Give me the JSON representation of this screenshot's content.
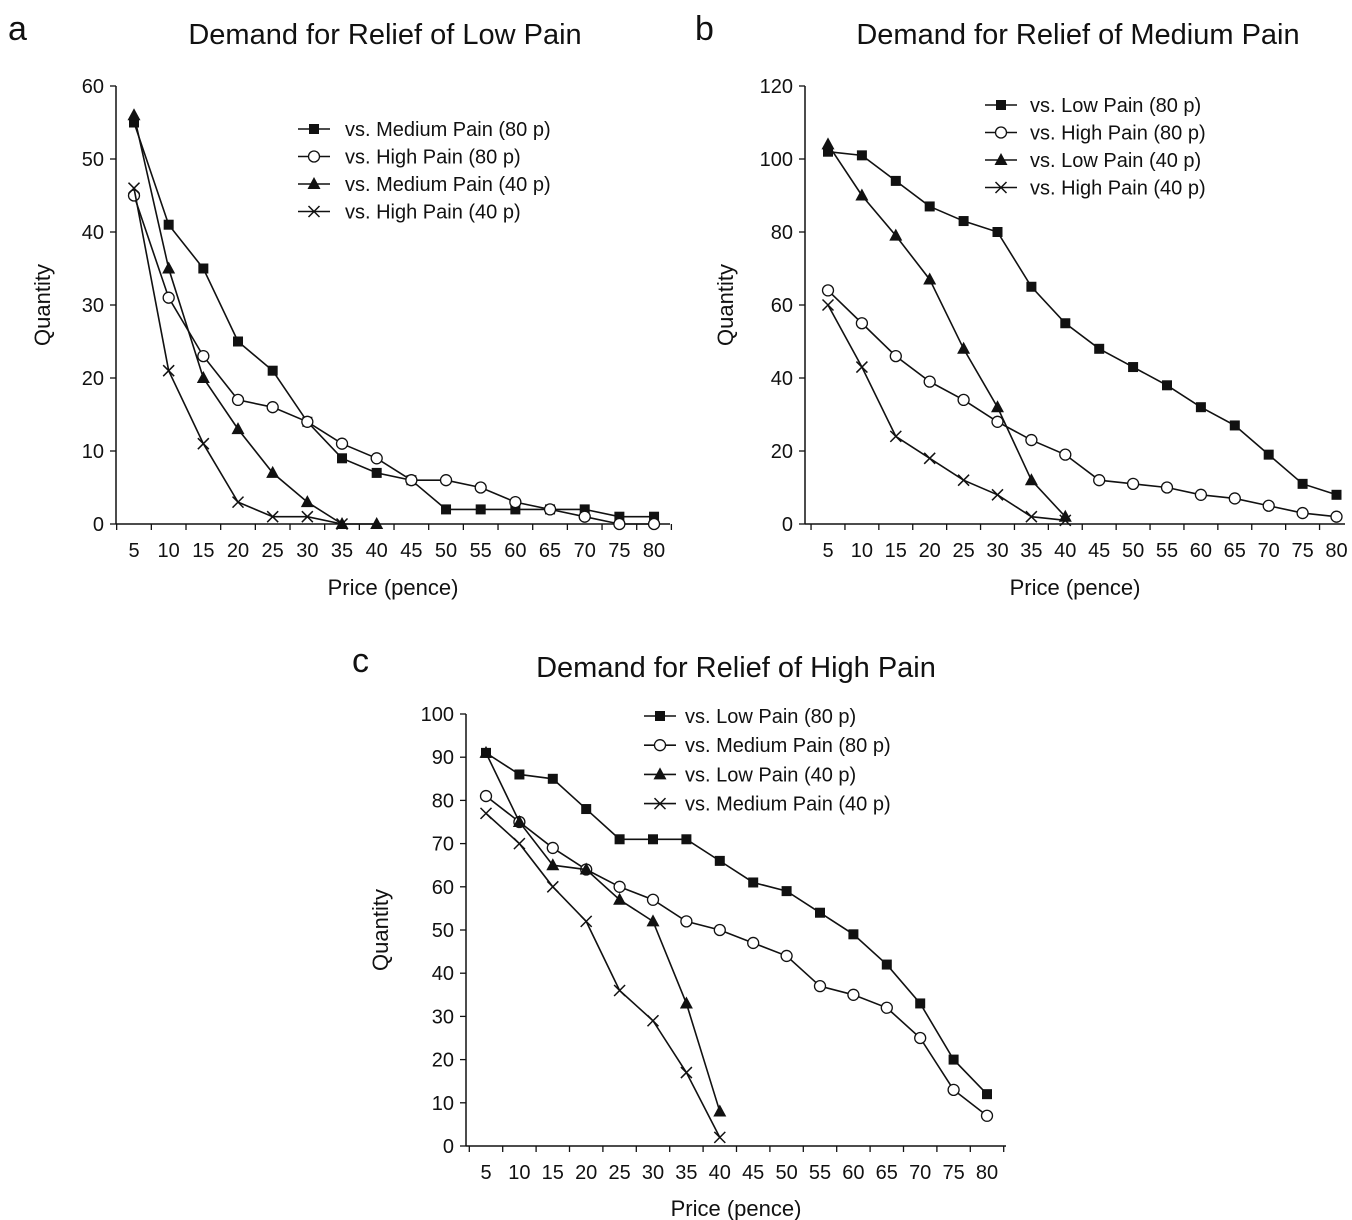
{
  "chart_data": [
    {
      "panel": "a",
      "type": "line",
      "title": "Demand for Relief of Low Pain",
      "xlabel": "Price (pence)",
      "ylabel": "Quantity",
      "x": [
        5,
        10,
        15,
        20,
        25,
        30,
        35,
        40,
        45,
        50,
        55,
        60,
        65,
        70,
        75,
        80
      ],
      "ylim": [
        0,
        60
      ],
      "yticks": [
        0,
        10,
        20,
        30,
        40,
        50,
        60
      ],
      "legend_position": "top-right",
      "grid": false,
      "series": [
        {
          "name": "vs. Medium Pain (80 p)",
          "marker": "square",
          "values": [
            55,
            41,
            35,
            25,
            21,
            14,
            9,
            7,
            6,
            2,
            2,
            2,
            2,
            2,
            1,
            1
          ]
        },
        {
          "name": "vs. High Pain (80 p)",
          "marker": "circle",
          "values": [
            45,
            31,
            23,
            17,
            16,
            14,
            11,
            9,
            6,
            6,
            5,
            3,
            2,
            1,
            0,
            0
          ]
        },
        {
          "name": "vs. Medium Pain (40 p)",
          "marker": "triangle",
          "values": [
            56,
            35,
            20,
            13,
            7,
            3,
            0,
            0,
            null,
            null,
            null,
            null,
            null,
            null,
            null,
            null
          ]
        },
        {
          "name": "vs. High Pain (40 p)",
          "marker": "cross",
          "values": [
            46,
            21,
            11,
            3,
            1,
            1,
            0,
            null,
            null,
            null,
            null,
            null,
            null,
            null,
            null,
            null
          ]
        }
      ]
    },
    {
      "panel": "b",
      "type": "line",
      "title": "Demand for Relief of Medium Pain",
      "xlabel": "Price (pence)",
      "ylabel": "Quantity",
      "x": [
        5,
        10,
        15,
        20,
        25,
        30,
        35,
        40,
        45,
        50,
        55,
        60,
        65,
        70,
        75,
        80
      ],
      "ylim": [
        0,
        120
      ],
      "yticks": [
        0,
        20,
        40,
        60,
        80,
        100,
        120
      ],
      "legend_position": "top-right",
      "grid": false,
      "series": [
        {
          "name": "vs. Low Pain (80 p)",
          "marker": "square",
          "values": [
            102,
            101,
            94,
            87,
            83,
            80,
            65,
            55,
            48,
            43,
            38,
            32,
            27,
            19,
            11,
            8
          ]
        },
        {
          "name": "vs. High Pain (80 p)",
          "marker": "circle",
          "values": [
            64,
            55,
            46,
            39,
            34,
            28,
            23,
            19,
            12,
            11,
            10,
            8,
            7,
            5,
            3,
            2
          ]
        },
        {
          "name": "vs. Low Pain (40 p)",
          "marker": "triangle",
          "values": [
            104,
            90,
            79,
            67,
            48,
            32,
            12,
            2,
            null,
            null,
            null,
            null,
            null,
            null,
            null,
            null
          ]
        },
        {
          "name": "vs. High Pain (40 p)",
          "marker": "cross",
          "values": [
            60,
            43,
            24,
            18,
            12,
            8,
            2,
            1,
            null,
            null,
            null,
            null,
            null,
            null,
            null,
            null
          ]
        }
      ]
    },
    {
      "panel": "c",
      "type": "line",
      "title": "Demand for Relief of High Pain",
      "xlabel": "Price (pence)",
      "ylabel": "Quantity",
      "x": [
        5,
        10,
        15,
        20,
        25,
        30,
        35,
        40,
        45,
        50,
        55,
        60,
        65,
        70,
        75,
        80
      ],
      "ylim": [
        0,
        100
      ],
      "yticks": [
        0,
        10,
        20,
        30,
        40,
        50,
        60,
        70,
        80,
        90,
        100
      ],
      "legend_position": "top-left",
      "grid": false,
      "series": [
        {
          "name": "vs. Low Pain (80 p)",
          "marker": "square",
          "values": [
            91,
            86,
            85,
            78,
            71,
            71,
            71,
            66,
            61,
            59,
            54,
            49,
            42,
            33,
            20,
            12
          ]
        },
        {
          "name": "vs. Medium Pain (80 p)",
          "marker": "circle",
          "values": [
            81,
            75,
            69,
            64,
            60,
            57,
            52,
            50,
            47,
            44,
            37,
            35,
            32,
            25,
            13,
            7
          ]
        },
        {
          "name": "vs. Low Pain (40 p)",
          "marker": "triangle",
          "values": [
            91,
            75,
            65,
            64,
            57,
            52,
            33,
            8,
            null,
            null,
            null,
            null,
            null,
            null,
            null,
            null
          ]
        },
        {
          "name": "vs. Medium Pain (40 p)",
          "marker": "cross",
          "values": [
            77,
            70,
            60,
            52,
            36,
            29,
            17,
            2,
            null,
            null,
            null,
            null,
            null,
            null,
            null,
            null
          ]
        }
      ]
    }
  ]
}
